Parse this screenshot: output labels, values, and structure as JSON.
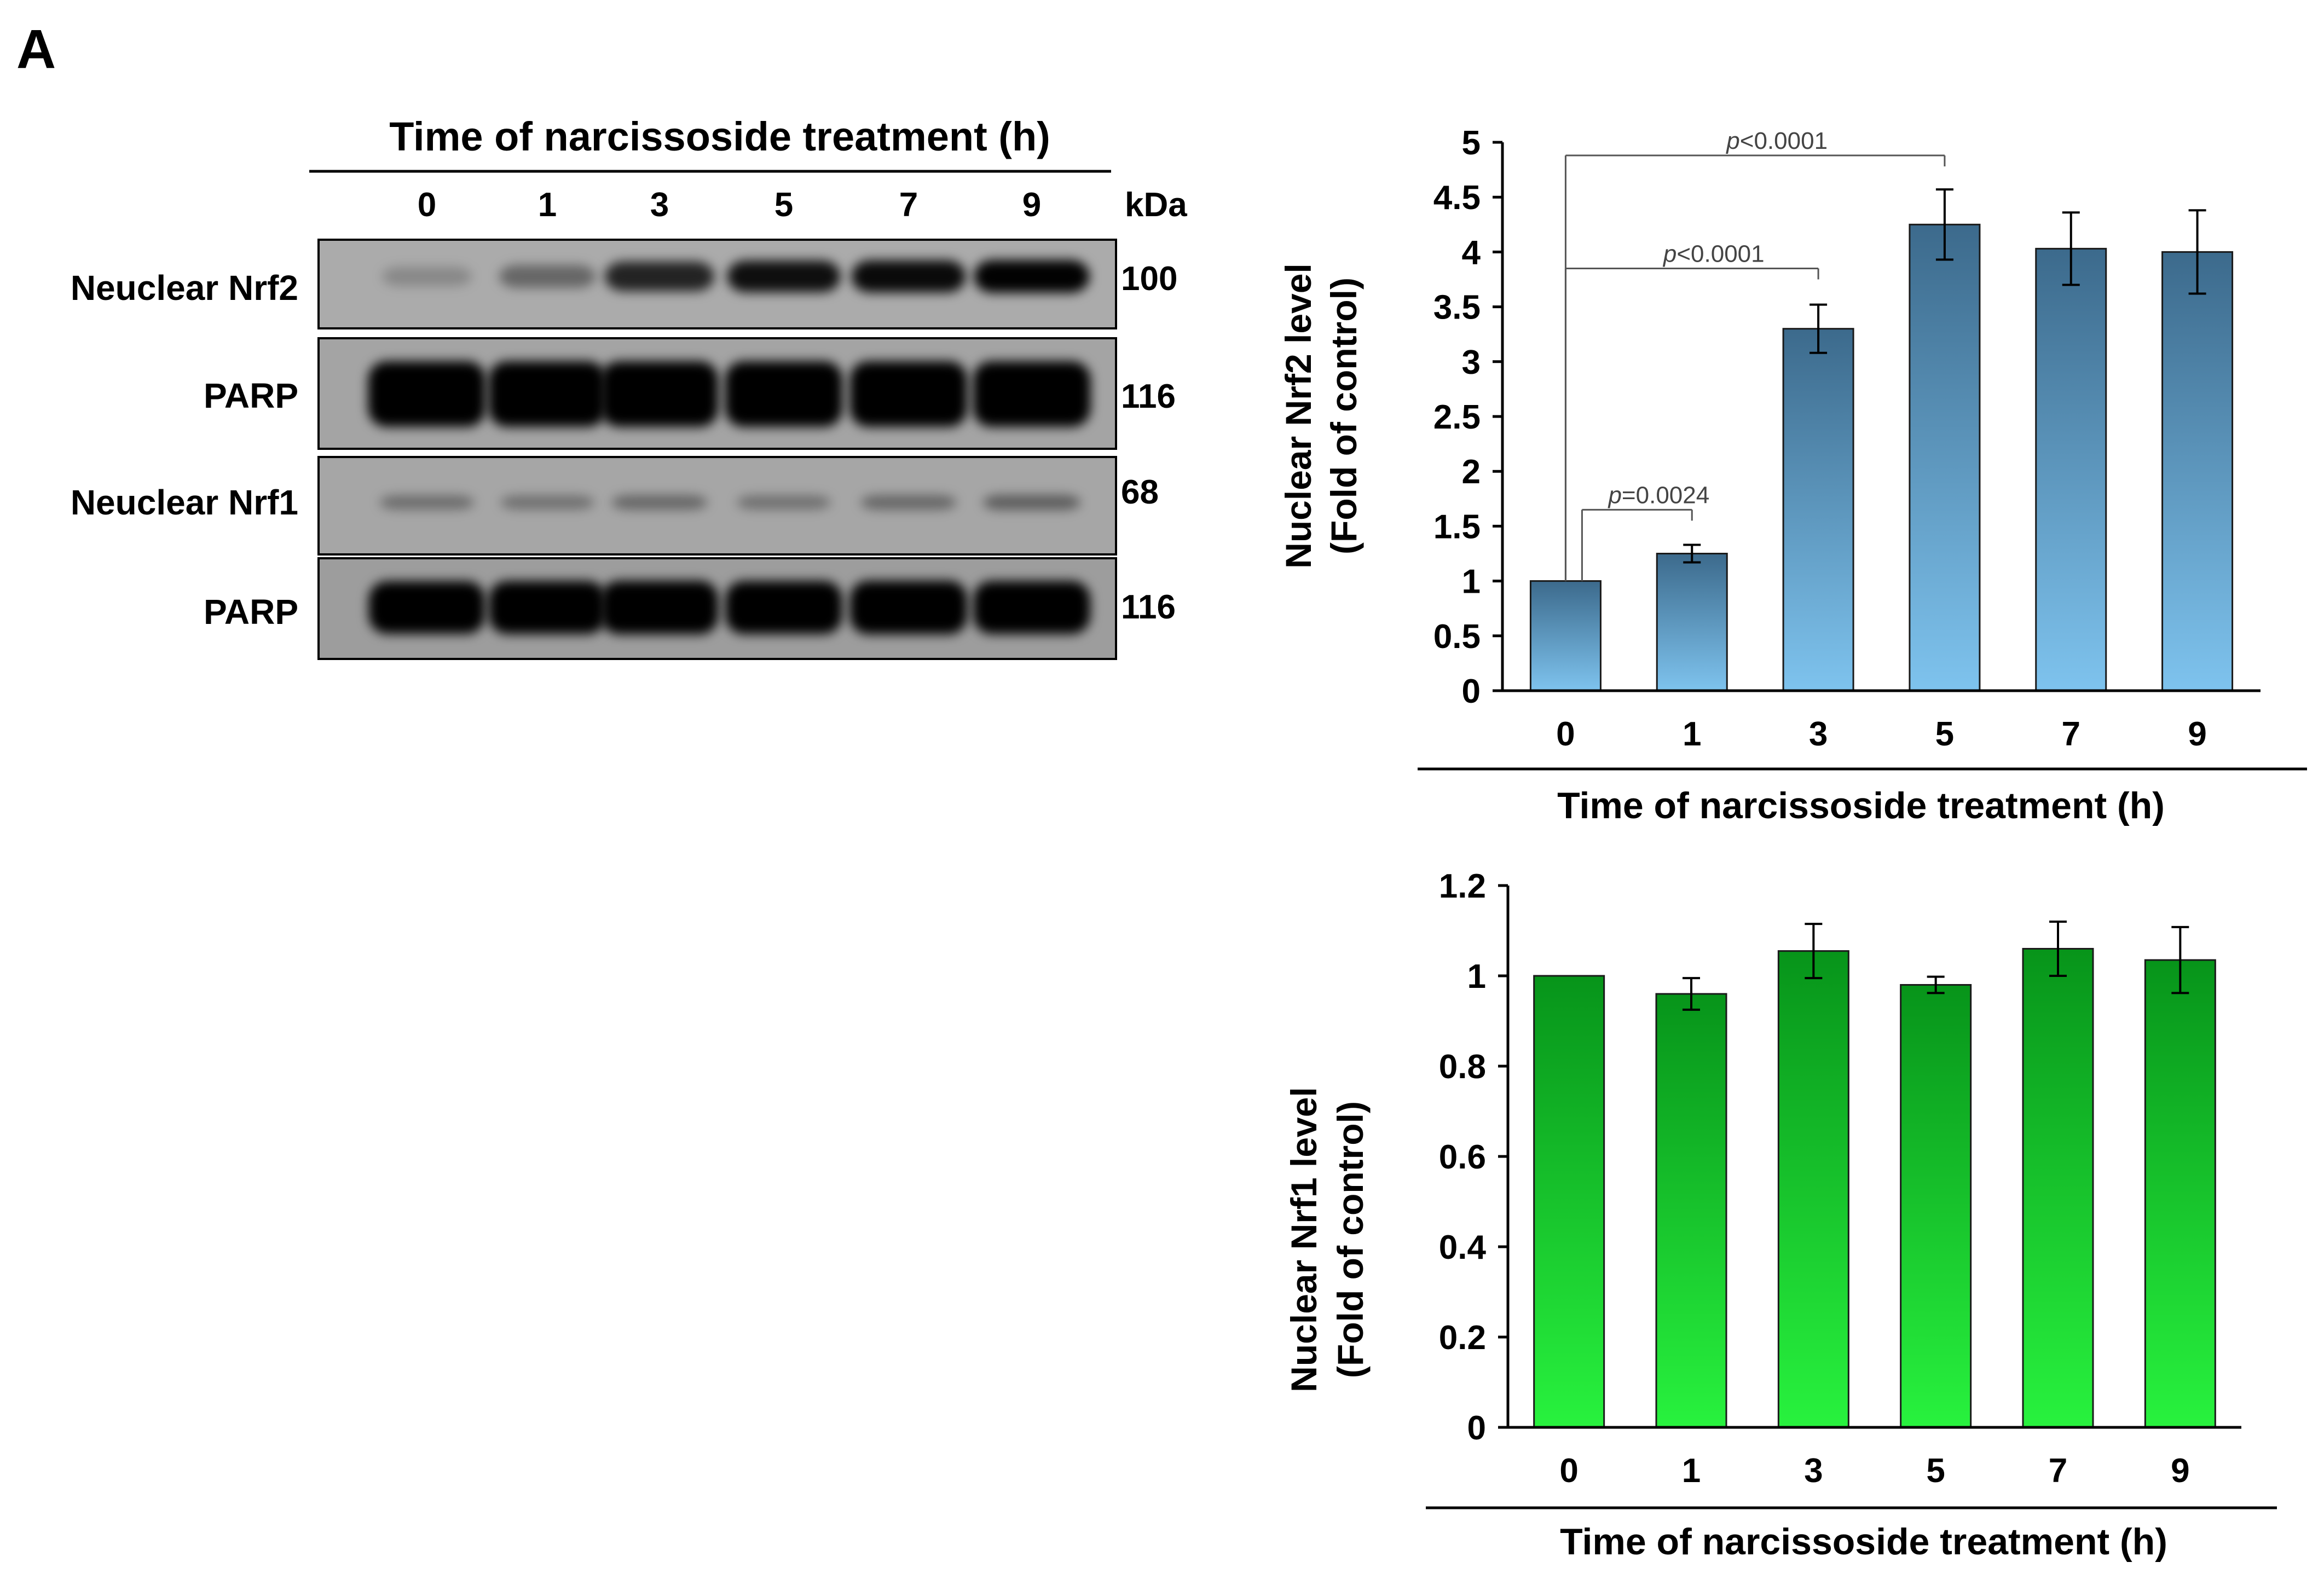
{
  "panel_label": "A",
  "blot": {
    "title": "Time of narcissoside treatment (h)",
    "lanes": [
      "0",
      "1",
      "3",
      "5",
      "7",
      "9"
    ],
    "kda_label": "kDa",
    "rows": [
      {
        "label": "Neuclear Nrf2",
        "kda": "100",
        "intensities": [
          0.06,
          0.28,
          0.72,
          0.85,
          0.88,
          0.93
        ],
        "background": "#ababab"
      },
      {
        "label": "PARP",
        "kda": "116",
        "intensities": [
          1.0,
          1.0,
          1.0,
          1.0,
          1.0,
          1.0
        ],
        "background": "#a4a4a4"
      },
      {
        "label": "Neuclear Nrf1",
        "kda": "68",
        "intensities": [
          0.22,
          0.2,
          0.26,
          0.2,
          0.26,
          0.32
        ],
        "background": "#a6a6a6"
      },
      {
        "label": "PARP",
        "kda": "116",
        "intensities": [
          0.96,
          0.98,
          1.0,
          0.98,
          1.0,
          0.98
        ],
        "background": "#9d9d9d"
      }
    ]
  },
  "chart_data": [
    {
      "type": "bar",
      "title": "",
      "categories": [
        "0",
        "1",
        "3",
        "5",
        "7",
        "9"
      ],
      "values": [
        1.0,
        1.25,
        3.3,
        4.25,
        4.03,
        4.0
      ],
      "errors": [
        0.0,
        0.08,
        0.22,
        0.32,
        0.33,
        0.38
      ],
      "ylim": [
        0,
        5
      ],
      "yticks": [
        0,
        0.5,
        1,
        1.5,
        2,
        2.5,
        3,
        3.5,
        4,
        4.5,
        5
      ],
      "ytick_labels": [
        "0",
        "0.5",
        "1",
        "1.5",
        "2",
        "2.5",
        "3",
        "3.5",
        "4",
        "4.5",
        "5"
      ],
      "ylabel_line1": "Nuclear  Nrf2 level",
      "ylabel_line2": "(Fold of control)",
      "xlabel": "Time of narcissoside treatment (h)",
      "color_top": "#3c6a8c",
      "color_bottom": "#7ec3ee",
      "annotations": [
        {
          "from": 0,
          "to": 1,
          "p_label": "p",
          "text": "=0.0024",
          "bracket_y": 1.65
        },
        {
          "from": 0,
          "to": 2,
          "p_label": "p",
          "text": "<0.0001",
          "bracket_y": 3.85
        },
        {
          "from": 0,
          "to": 3,
          "p_label": "p",
          "text": "<0.0001",
          "bracket_y": 4.88
        }
      ]
    },
    {
      "type": "bar",
      "title": "",
      "categories": [
        "0",
        "1",
        "3",
        "5",
        "7",
        "9"
      ],
      "values": [
        1.0,
        0.96,
        1.055,
        0.98,
        1.06,
        1.035
      ],
      "errors": [
        0.0,
        0.035,
        0.06,
        0.018,
        0.06,
        0.073
      ],
      "ylim": [
        0,
        1.2
      ],
      "yticks": [
        0,
        0.2,
        0.4,
        0.6,
        0.8,
        1,
        1.2
      ],
      "ytick_labels": [
        "0",
        "0.2",
        "0.4",
        "0.6",
        "0.8",
        "1",
        "1.2"
      ],
      "ylabel_line1": "Nuclear  Nrf1  level",
      "ylabel_line2": "(Fold of control)",
      "xlabel": "Time of narcissoside treatment (h)",
      "color_top": "#07941a",
      "color_bottom": "#28f23e",
      "annotations": []
    }
  ]
}
